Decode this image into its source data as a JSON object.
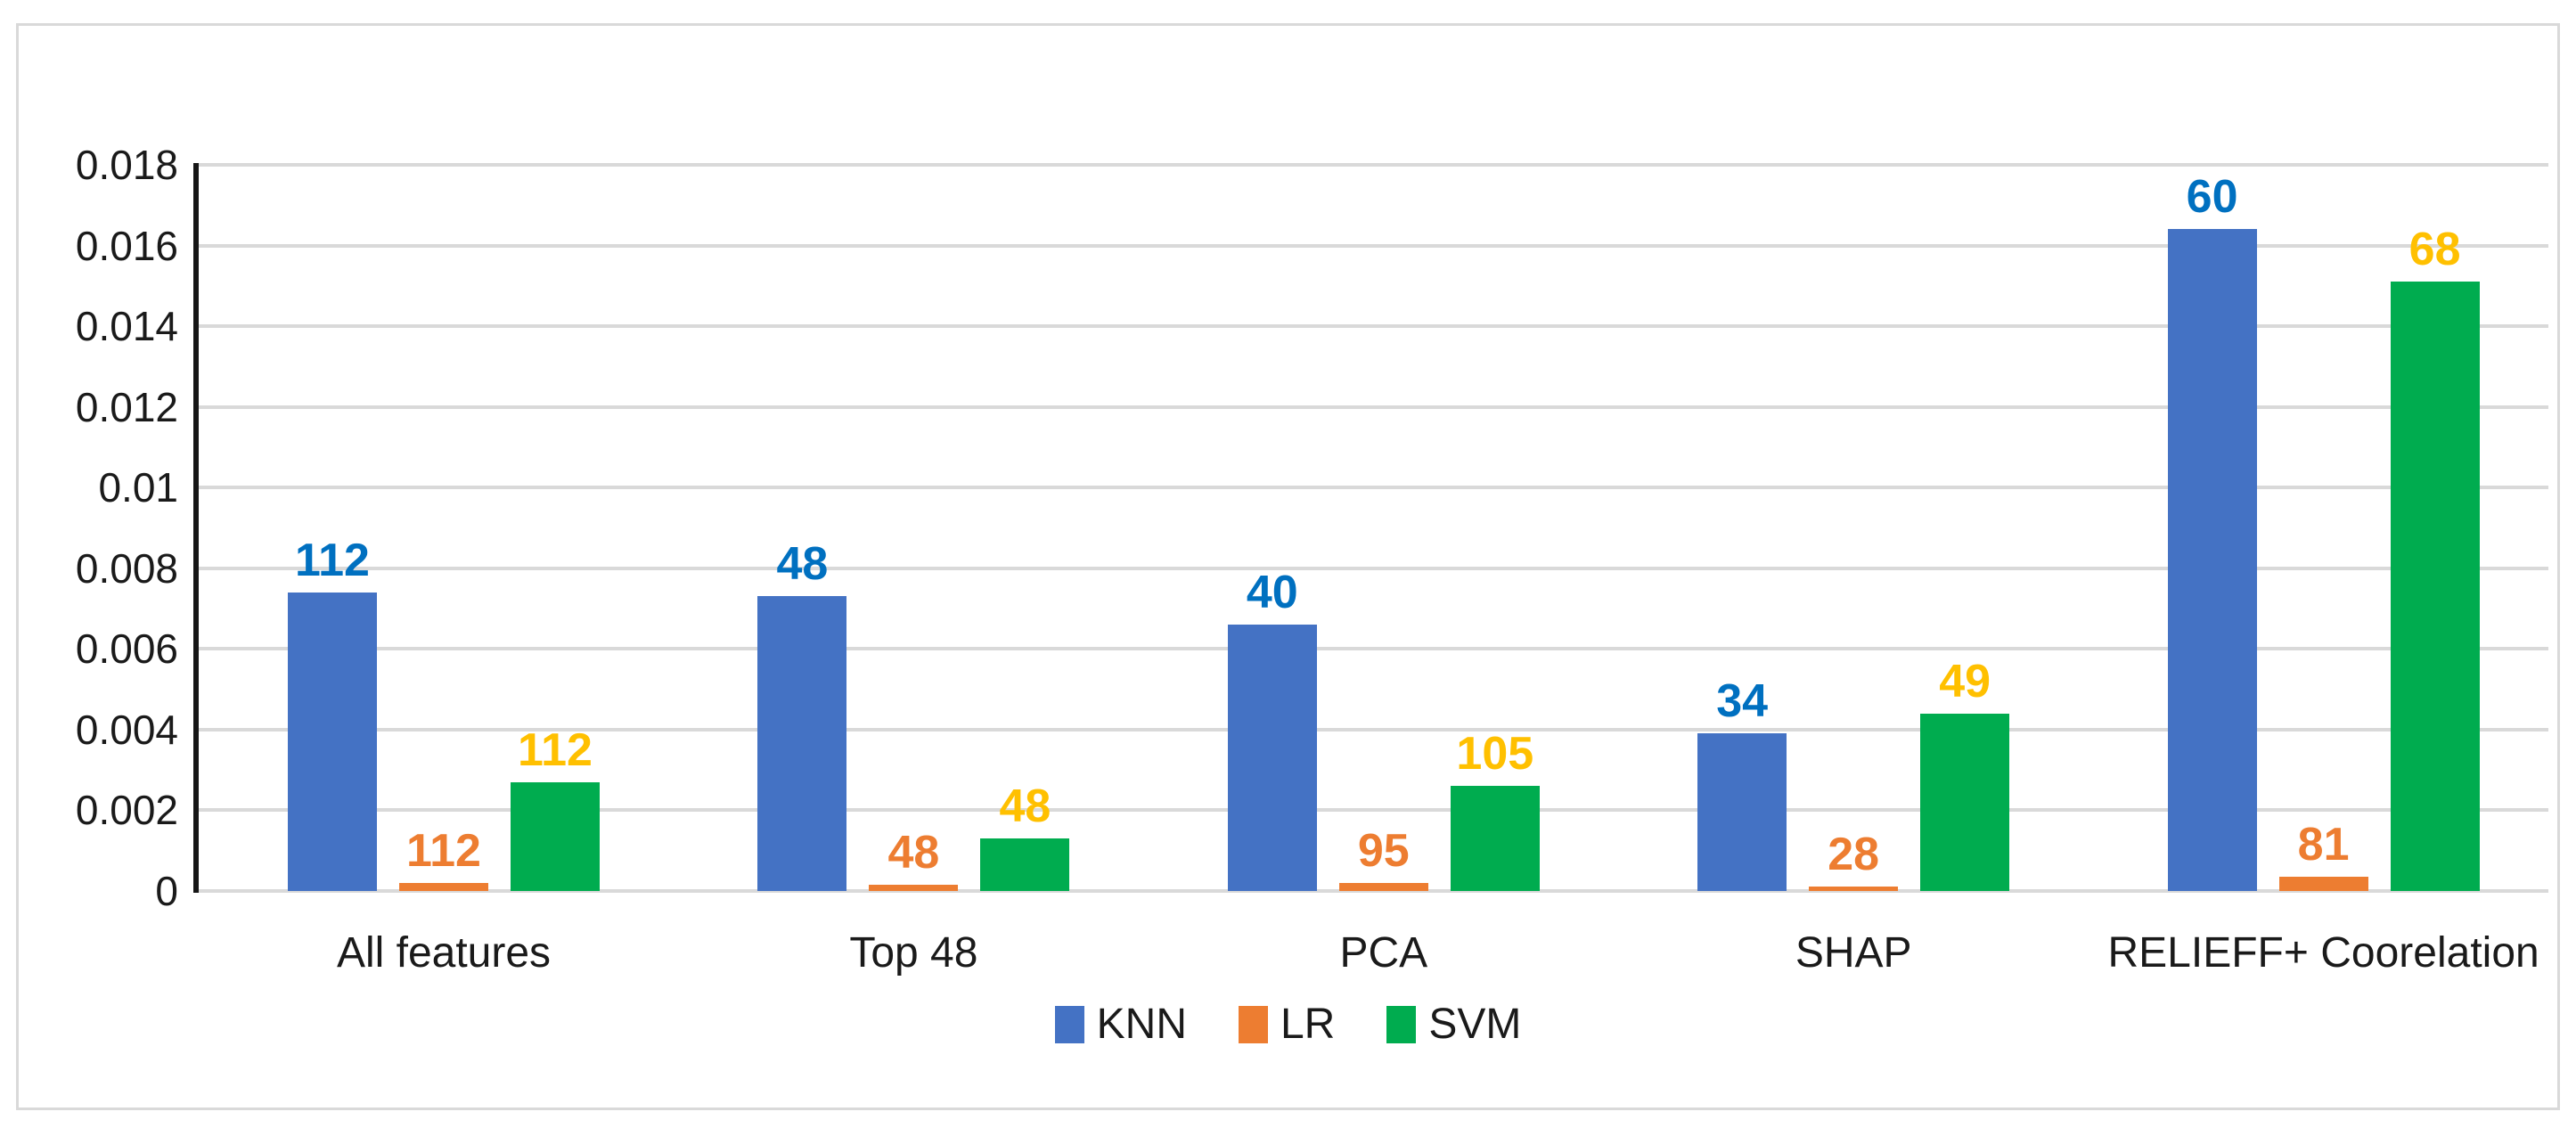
{
  "figure": {
    "background_color": "#FFFFFF",
    "border_color": "#D9D9D9",
    "gridline_color": "#D9D9D9",
    "axis_line_color": "#161616"
  },
  "chart_data": {
    "type": "bar",
    "title": "",
    "categories": [
      "All features",
      "Top 48",
      "PCA",
      "SHAP",
      "RELIEFF+ Coorelation"
    ],
    "series": [
      {
        "name": "KNN",
        "color": "#4472C4",
        "label_color": "#0070C0",
        "values": [
          0.0074,
          0.0073,
          0.0066,
          0.0039,
          0.0164
        ],
        "data_labels": [
          "112",
          "48",
          "40",
          "34",
          "60"
        ]
      },
      {
        "name": "LR",
        "color": "#ED7D31",
        "label_color": "#ED7D31",
        "values": [
          0.0002,
          0.00015,
          0.0002,
          0.0001,
          0.00035
        ],
        "data_labels": [
          "112",
          "48",
          "95",
          "28",
          "81"
        ]
      },
      {
        "name": "SVM",
        "color": "#00AC4F",
        "label_color": "#FFC000",
        "values": [
          0.0027,
          0.0013,
          0.0026,
          0.0044,
          0.0151
        ],
        "data_labels": [
          "112",
          "48",
          "105",
          "49",
          "68"
        ]
      }
    ],
    "ylim": [
      0,
      0.018
    ],
    "yticks": [
      "0",
      "0.002",
      "0.004",
      "0.006",
      "0.008",
      "0.01",
      "0.012",
      "0.014",
      "0.016",
      "0.018"
    ],
    "grid": true,
    "legend_position": "bottom-center",
    "legend_entries": [
      "KNN",
      "LR",
      "SVM"
    ]
  }
}
